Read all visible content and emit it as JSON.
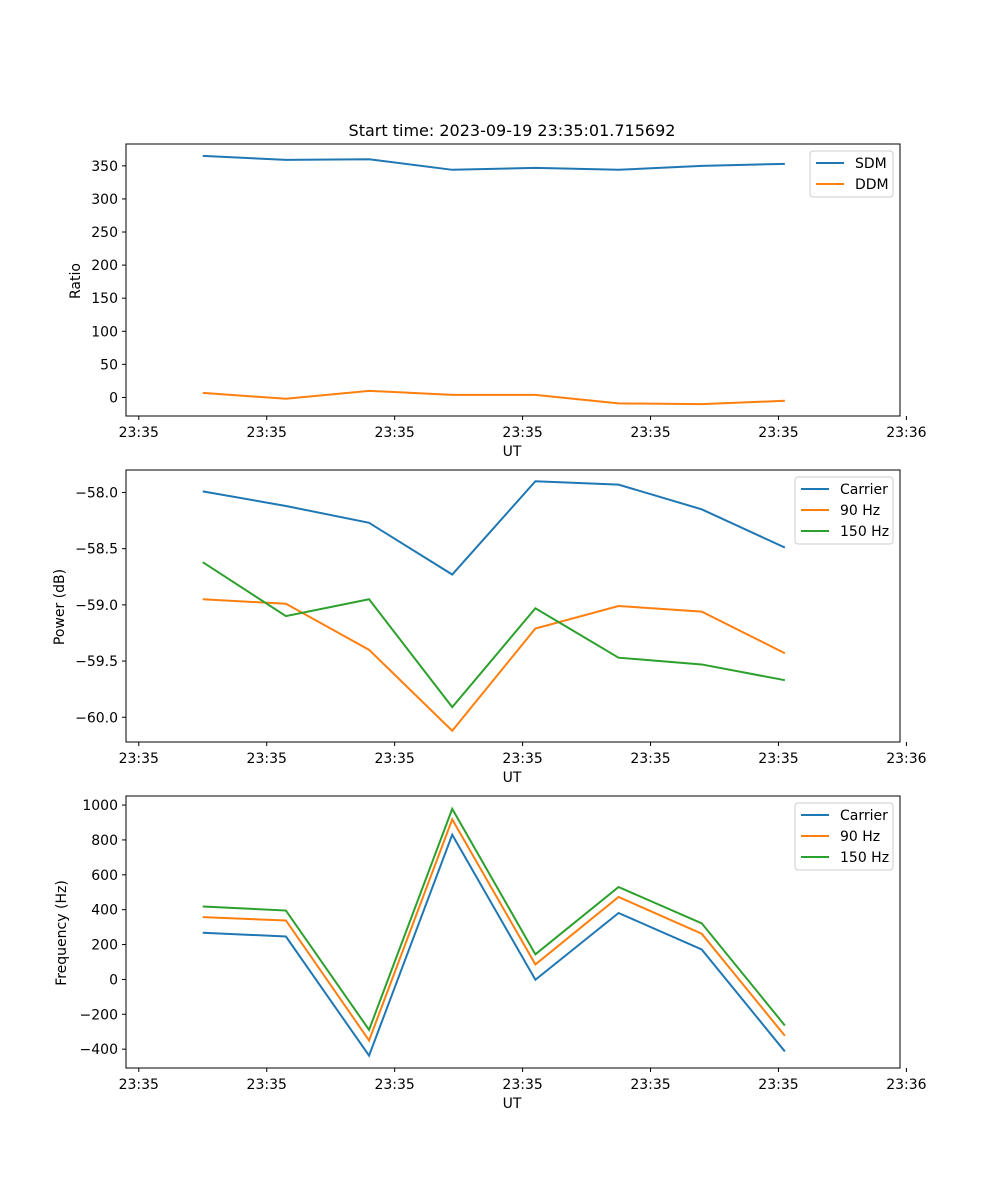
{
  "chart_data": [
    {
      "type": "line",
      "title": "Start time: 2023-09-19 23:35:01.715692",
      "xlabel": "UT",
      "ylabel": "Ratio",
      "x_tick_labels": [
        "23:35",
        "23:35",
        "23:35",
        "23:35",
        "23:35",
        "23:35",
        "23:36"
      ],
      "x_ticks": [
        0,
        1,
        2,
        3,
        4,
        5,
        6
      ],
      "xlim": [
        -0.1,
        5.95
      ],
      "ylim": [
        -28,
        383
      ],
      "y_ticks": [
        0,
        50,
        100,
        150,
        200,
        250,
        300,
        350
      ],
      "y_tick_labels": [
        "0",
        "50",
        "100",
        "150",
        "200",
        "250",
        "300",
        "350"
      ],
      "x": [
        0.5,
        1.15,
        1.8,
        2.45,
        3.1,
        3.75,
        4.4,
        5.05
      ],
      "legend_position": "top-right",
      "series": [
        {
          "name": "SDM",
          "color": "#1f77b4",
          "values": [
            365,
            359,
            360,
            344,
            347,
            344,
            350,
            353
          ]
        },
        {
          "name": "DDM",
          "color": "#ff7f0e",
          "values": [
            7,
            -2,
            10,
            4,
            4,
            -9,
            -10,
            -5
          ]
        }
      ]
    },
    {
      "type": "line",
      "title": "",
      "xlabel": "UT",
      "ylabel": "Power (dB)",
      "x_tick_labels": [
        "23:35",
        "23:35",
        "23:35",
        "23:35",
        "23:35",
        "23:35",
        "23:36"
      ],
      "x_ticks": [
        0,
        1,
        2,
        3,
        4,
        5,
        6
      ],
      "xlim": [
        -0.1,
        5.95
      ],
      "ylim": [
        -60.22,
        -57.8
      ],
      "y_ticks": [
        -58.0,
        -58.5,
        -59.0,
        -59.5,
        -60.0
      ],
      "y_tick_labels": [
        "−58.0",
        "−58.5",
        "−59.0",
        "−59.5",
        "−60.0"
      ],
      "x": [
        0.5,
        1.15,
        1.8,
        2.45,
        3.1,
        3.75,
        4.4,
        5.05
      ],
      "legend_position": "top-right",
      "series": [
        {
          "name": "Carrier",
          "color": "#1f77b4",
          "values": [
            -57.99,
            -58.12,
            -58.27,
            -58.73,
            -57.9,
            -57.93,
            -58.15,
            -58.49
          ]
        },
        {
          "name": "90 Hz",
          "color": "#ff7f0e",
          "values": [
            -58.95,
            -58.99,
            -59.4,
            -60.12,
            -59.21,
            -59.01,
            -59.06,
            -59.43
          ]
        },
        {
          "name": "150 Hz",
          "color": "#2ca02c",
          "values": [
            -58.62,
            -59.1,
            -58.95,
            -59.91,
            -59.03,
            -59.47,
            -59.53,
            -59.67
          ]
        }
      ]
    },
    {
      "type": "line",
      "title": "",
      "xlabel": "UT",
      "ylabel": "Frequency (Hz)",
      "x_tick_labels": [
        "23:35",
        "23:35",
        "23:35",
        "23:35",
        "23:35",
        "23:35",
        "23:36"
      ],
      "x_ticks": [
        0,
        1,
        2,
        3,
        4,
        5,
        6
      ],
      "xlim": [
        -0.1,
        5.95
      ],
      "ylim": [
        -508,
        1052
      ],
      "y_ticks": [
        1000,
        800,
        600,
        400,
        200,
        0,
        -200,
        -400
      ],
      "y_tick_labels": [
        "1000",
        "800",
        "600",
        "400",
        "200",
        "0",
        "−200",
        "−400"
      ],
      "x": [
        0.5,
        1.15,
        1.8,
        2.45,
        3.1,
        3.75,
        4.4,
        5.05
      ],
      "legend_position": "top-right",
      "series": [
        {
          "name": "Carrier",
          "color": "#1f77b4",
          "values": [
            268,
            246,
            -437,
            830,
            -2,
            381,
            172,
            -413
          ]
        },
        {
          "name": "90 Hz",
          "color": "#ff7f0e",
          "values": [
            357,
            338,
            -350,
            918,
            86,
            473,
            262,
            -323
          ]
        },
        {
          "name": "150 Hz",
          "color": "#2ca02c",
          "values": [
            418,
            395,
            -289,
            978,
            144,
            530,
            322,
            -264
          ]
        }
      ]
    }
  ]
}
